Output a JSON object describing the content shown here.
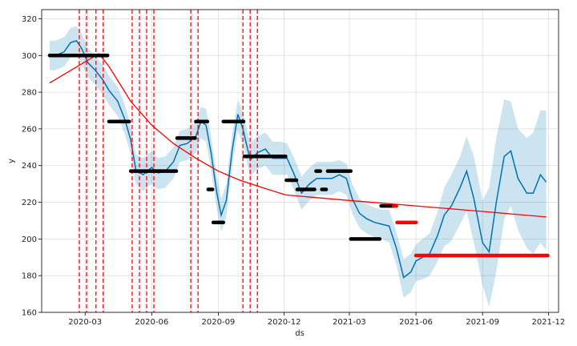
{
  "chart_data": {
    "type": "line",
    "title": "",
    "xlabel": "ds",
    "ylabel": "y",
    "xlim": [
      "2020-01-01",
      "2021-12-15"
    ],
    "ylim": [
      160,
      325
    ],
    "grid": true,
    "x_ticks": [
      "2020-03",
      "2020-06",
      "2020-09",
      "2020-12",
      "2021-03",
      "2021-06",
      "2021-09",
      "2021-12"
    ],
    "y_ticks": [
      160,
      180,
      200,
      220,
      240,
      260,
      280,
      300,
      320
    ],
    "colors": {
      "forecast": "#0072b2",
      "uncertainty": "#0072b2",
      "observed": "#000000",
      "future_points": "#ff0000",
      "trend": "#ff0000",
      "changepoints": "#ff0000",
      "grid": "#dddddd"
    },
    "observed": [
      {
        "x": [
          "2020-01-12",
          "2020-04-01"
        ],
        "y": 300
      },
      {
        "x": [
          "2020-04-03",
          "2020-05-01"
        ],
        "y": 264
      },
      {
        "x": [
          "2020-05-03",
          "2020-07-05"
        ],
        "y": 237
      },
      {
        "x": [
          "2020-07-06",
          "2020-07-31"
        ],
        "y": 255
      },
      {
        "x": [
          "2020-08-01",
          "2020-08-17"
        ],
        "y": 264
      },
      {
        "x": [
          "2020-08-18",
          "2020-08-24"
        ],
        "y": 227
      },
      {
        "x": [
          "2020-08-25",
          "2020-09-08"
        ],
        "y": 209
      },
      {
        "x": [
          "2020-09-08",
          "2020-10-06"
        ],
        "y": 264
      },
      {
        "x": [
          "2020-10-07",
          "2020-12-03"
        ],
        "y": 245
      },
      {
        "x": [
          "2020-12-04",
          "2020-12-18"
        ],
        "y": 232
      },
      {
        "x": [
          "2020-12-19",
          "2021-01-12"
        ],
        "y": 227
      },
      {
        "x": [
          "2021-01-14",
          "2021-01-20"
        ],
        "y": 237
      },
      {
        "x": [
          "2021-01-22",
          "2021-01-28"
        ],
        "y": 227
      },
      {
        "x": [
          "2021-01-30",
          "2021-03-03"
        ],
        "y": 237
      },
      {
        "x": [
          "2021-03-03",
          "2021-04-12"
        ],
        "y": 200
      },
      {
        "x": [
          "2021-04-14",
          "2021-05-01"
        ],
        "y": 218
      }
    ],
    "future_points": [
      {
        "x": [
          "2021-05-01",
          "2021-05-05"
        ],
        "y": 218
      },
      {
        "x": [
          "2021-05-06",
          "2021-06-01"
        ],
        "y": 209
      },
      {
        "x": [
          "2021-06-01",
          "2021-11-30"
        ],
        "y": 191
      }
    ],
    "forecast": {
      "x": [
        "2020-01-12",
        "2020-01-20",
        "2020-02-01",
        "2020-02-10",
        "2020-02-18",
        "2020-02-25",
        "2020-03-05",
        "2020-03-15",
        "2020-03-25",
        "2020-04-03",
        "2020-04-15",
        "2020-04-25",
        "2020-05-03",
        "2020-05-10",
        "2020-05-20",
        "2020-06-01",
        "2020-06-10",
        "2020-06-20",
        "2020-07-01",
        "2020-07-10",
        "2020-07-20",
        "2020-08-01",
        "2020-08-08",
        "2020-08-15",
        "2020-08-22",
        "2020-08-30",
        "2020-09-05",
        "2020-09-12",
        "2020-09-20",
        "2020-09-28",
        "2020-10-05",
        "2020-10-15",
        "2020-10-25",
        "2020-11-05",
        "2020-11-15",
        "2020-11-25",
        "2020-12-05",
        "2020-12-15",
        "2020-12-25",
        "2021-01-05",
        "2021-01-15",
        "2021-01-25",
        "2021-02-05",
        "2021-02-15",
        "2021-02-25",
        "2021-03-05",
        "2021-03-15",
        "2021-03-25",
        "2021-04-05",
        "2021-04-15",
        "2021-04-25",
        "2021-05-05",
        "2021-05-15",
        "2021-05-25",
        "2021-06-01",
        "2021-06-10",
        "2021-06-20",
        "2021-07-01",
        "2021-07-10",
        "2021-07-20",
        "2021-08-01",
        "2021-08-10",
        "2021-08-20",
        "2021-09-01",
        "2021-09-10",
        "2021-09-20",
        "2021-10-01",
        "2021-10-10",
        "2021-10-20",
        "2021-11-01",
        "2021-11-10",
        "2021-11-20",
        "2021-11-28"
      ],
      "yhat": [
        300,
        300,
        302,
        307,
        308,
        304,
        296,
        292,
        287,
        281,
        275,
        265,
        254,
        238,
        235,
        239,
        236,
        237,
        242,
        251,
        252,
        256,
        264,
        262,
        247,
        225,
        213,
        221,
        248,
        268,
        260,
        243,
        247,
        249,
        244,
        244,
        244,
        235,
        225,
        230,
        233,
        233,
        233,
        235,
        233,
        222,
        214,
        211,
        209,
        208,
        207,
        195,
        179,
        182,
        188,
        190,
        192,
        202,
        213,
        218,
        228,
        237,
        222,
        198,
        193,
        220,
        245,
        248,
        233,
        225,
        225,
        235,
        231
      ],
      "upper": [
        308,
        308,
        310,
        315,
        316,
        312,
        304,
        300,
        295,
        289,
        283,
        273,
        262,
        246,
        244,
        248,
        244,
        245,
        250,
        259,
        260,
        264,
        272,
        271,
        256,
        234,
        222,
        230,
        257,
        276,
        269,
        252,
        256,
        258,
        253,
        253,
        252,
        244,
        234,
        239,
        242,
        242,
        242,
        243,
        241,
        230,
        222,
        219,
        217,
        216,
        216,
        204,
        189,
        192,
        197,
        200,
        203,
        215,
        228,
        235,
        245,
        256,
        245,
        221,
        228,
        255,
        276,
        275,
        260,
        255,
        258,
        270,
        270
      ],
      "lower": [
        292,
        292,
        294,
        299,
        300,
        296,
        288,
        284,
        279,
        273,
        267,
        257,
        246,
        230,
        226,
        230,
        227,
        228,
        233,
        242,
        243,
        247,
        255,
        253,
        238,
        216,
        204,
        212,
        239,
        259,
        251,
        234,
        238,
        240,
        235,
        235,
        235,
        226,
        216,
        221,
        224,
        224,
        224,
        226,
        224,
        214,
        206,
        203,
        201,
        200,
        198,
        186,
        168,
        171,
        177,
        178,
        180,
        188,
        196,
        199,
        208,
        215,
        198,
        175,
        163,
        182,
        211,
        218,
        205,
        195,
        192,
        198,
        194
      ]
    },
    "trend": {
      "x": [
        "2020-01-12",
        "2020-03-20",
        "2020-04-03",
        "2020-05-03",
        "2020-06-01",
        "2020-07-01",
        "2020-08-01",
        "2020-09-01",
        "2020-10-01",
        "2020-11-01",
        "2020-12-03",
        "2021-03-01",
        "2021-06-01",
        "2021-09-01",
        "2021-11-28"
      ],
      "y": [
        285,
        301,
        294,
        275,
        262,
        252,
        244,
        237,
        232,
        228,
        224,
        221,
        218,
        215,
        212
      ]
    },
    "changepoints": [
      "2020-02-22",
      "2020-03-03",
      "2020-03-16",
      "2020-03-26",
      "2020-05-05",
      "2020-05-15",
      "2020-05-25",
      "2020-06-04",
      "2020-07-25",
      "2020-08-04",
      "2020-10-05",
      "2020-10-15",
      "2020-10-25"
    ]
  }
}
